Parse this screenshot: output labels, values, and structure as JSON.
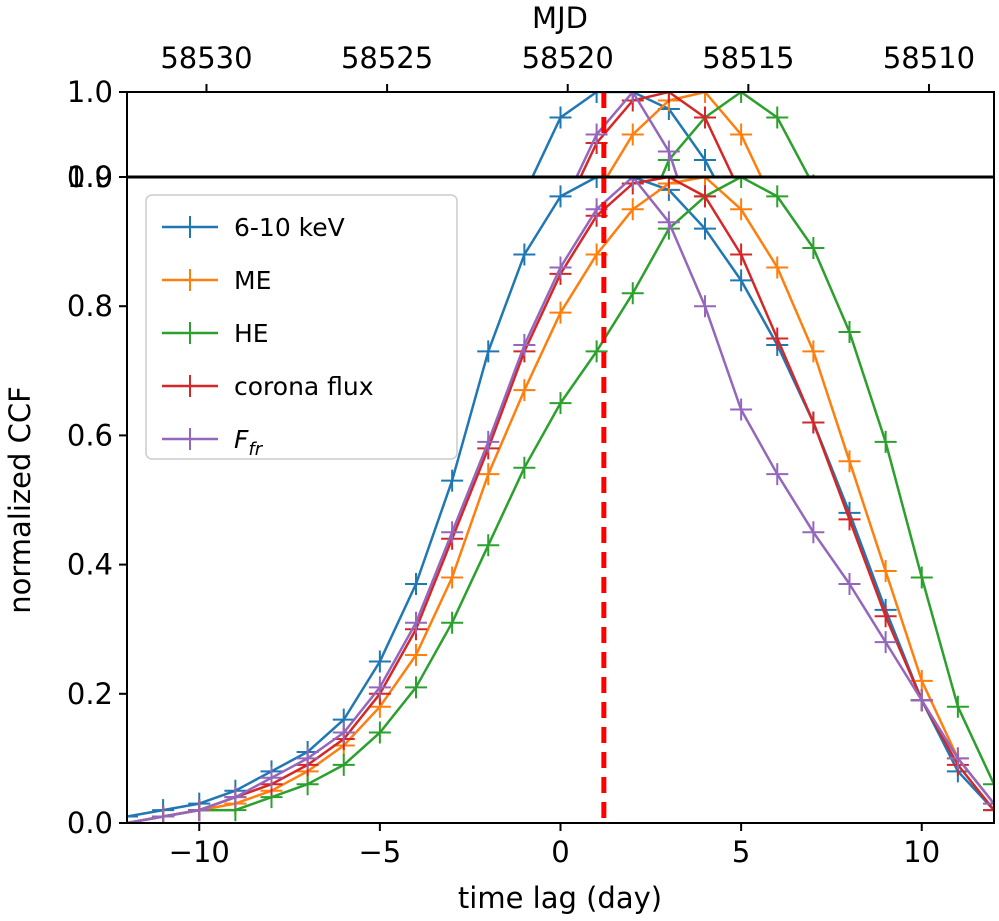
{
  "chart_data": {
    "type": "line",
    "xlabel": "time lag (day)",
    "ylabel": "normalized CCF",
    "top_axis_label": "MJD",
    "xlim": [
      -12,
      12
    ],
    "ylim": [
      0.0,
      1.0
    ],
    "inset_ylim": [
      0.9,
      1.0
    ],
    "xticks": [
      -10,
      -5,
      0,
      5,
      10
    ],
    "xtick_labels": [
      "−10",
      "−5",
      "0",
      "5",
      "10"
    ],
    "yticks": [
      0.0,
      0.2,
      0.4,
      0.6,
      0.8,
      1.0
    ],
    "ytick_labels": [
      "0.0",
      "0.2",
      "0.4",
      "0.6",
      "0.8",
      "1.0"
    ],
    "inset_yticks": [
      0.9,
      1.0
    ],
    "inset_ytick_labels": [
      "0.9",
      "1.0"
    ],
    "mjd_ticks": [
      {
        "lag": -9.8,
        "label": "58530"
      },
      {
        "lag": -4.8,
        "label": "58525"
      },
      {
        "lag": 0.2,
        "label": "58520"
      },
      {
        "lag": 5.2,
        "label": "58515"
      },
      {
        "lag": 10.2,
        "label": "58510"
      }
    ],
    "vline": {
      "x": 1.2,
      "color": "#ff0000",
      "style": "dashed"
    },
    "x": [
      -12,
      -11,
      -10,
      -9,
      -8,
      -7,
      -6,
      -5,
      -4,
      -3,
      -2,
      -1,
      0,
      1,
      2,
      3,
      4,
      5,
      6,
      7,
      8,
      9,
      10,
      11,
      12
    ],
    "series": [
      {
        "name": "6-10 keV",
        "color": "#1f77b4",
        "values": [
          0.01,
          0.02,
          0.03,
          0.05,
          0.08,
          0.11,
          0.16,
          0.25,
          0.37,
          0.53,
          0.73,
          0.88,
          0.97,
          1.0,
          1.0,
          0.98,
          0.92,
          0.84,
          0.74,
          0.62,
          0.48,
          0.33,
          0.19,
          0.08,
          0.02
        ]
      },
      {
        "name": "ME",
        "color": "#ff7f0e",
        "values": [
          0.0,
          0.01,
          0.02,
          0.03,
          0.05,
          0.08,
          0.12,
          0.18,
          0.26,
          0.38,
          0.54,
          0.67,
          0.79,
          0.88,
          0.95,
          0.99,
          1.0,
          0.95,
          0.86,
          0.73,
          0.56,
          0.39,
          0.22,
          0.1,
          0.03
        ]
      },
      {
        "name": "HE",
        "color": "#2ca02c",
        "values": [
          0.0,
          0.01,
          0.02,
          0.02,
          0.04,
          0.06,
          0.09,
          0.14,
          0.21,
          0.31,
          0.43,
          0.55,
          0.65,
          0.73,
          0.82,
          0.92,
          0.97,
          1.0,
          0.97,
          0.89,
          0.76,
          0.59,
          0.38,
          0.18,
          0.06
        ]
      },
      {
        "name": "corona flux",
        "color": "#d62728",
        "values": [
          0.0,
          0.01,
          0.02,
          0.04,
          0.06,
          0.09,
          0.13,
          0.2,
          0.3,
          0.44,
          0.58,
          0.73,
          0.85,
          0.94,
          0.99,
          1.0,
          0.97,
          0.88,
          0.75,
          0.62,
          0.47,
          0.32,
          0.19,
          0.09,
          0.02
        ]
      },
      {
        "name": "F_fr",
        "color": "#9467bd",
        "values": [
          0.0,
          0.01,
          0.02,
          0.04,
          0.07,
          0.1,
          0.14,
          0.21,
          0.31,
          0.45,
          0.59,
          0.74,
          0.86,
          0.95,
          1.0,
          0.93,
          0.8,
          0.64,
          0.54,
          0.45,
          0.37,
          0.28,
          0.19,
          0.1,
          0.03
        ]
      }
    ],
    "legend": {
      "position": "upper-left",
      "entries": [
        {
          "label": "6-10 keV",
          "color": "#1f77b4"
        },
        {
          "label": "ME",
          "color": "#ff7f0e"
        },
        {
          "label": "HE",
          "color": "#2ca02c"
        },
        {
          "label": "corona flux",
          "color": "#d62728"
        },
        {
          "label": "F",
          "sub": "fr",
          "color": "#9467bd"
        }
      ]
    }
  }
}
